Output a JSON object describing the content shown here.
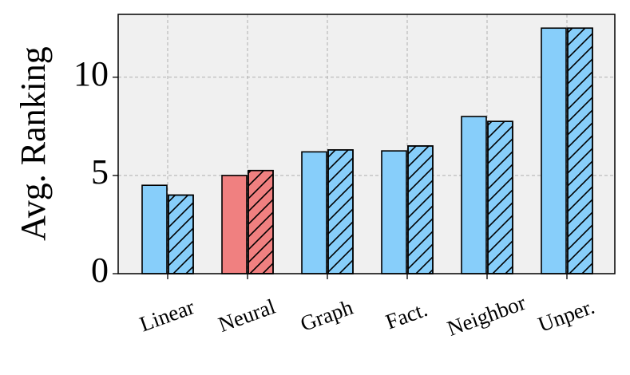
{
  "chart_data": {
    "type": "grouped_bar",
    "y_label": "Avg. Ranking",
    "categories": [
      "Linear",
      "Neural",
      "Graph",
      "Fact.",
      "Neighbor",
      "Unper."
    ],
    "series": [
      {
        "values": [
          4.5,
          5.0,
          6.2,
          6.25,
          8.0,
          12.5
        ],
        "colors": [
          "#87cefa",
          "#f08080",
          "#87cefa",
          "#87cefa",
          "#87cefa",
          "#87cefa"
        ],
        "hatch": false
      },
      {
        "values": [
          4.0,
          5.25,
          6.3,
          6.5,
          7.75,
          12.5
        ],
        "colors": [
          "#87cefa",
          "#f08080",
          "#87cefa",
          "#87cefa",
          "#87cefa",
          "#87cefa"
        ],
        "hatch": true
      }
    ],
    "ylim": [
      0,
      13.2
    ],
    "yticks": [
      0,
      5,
      10
    ],
    "grid": true
  }
}
